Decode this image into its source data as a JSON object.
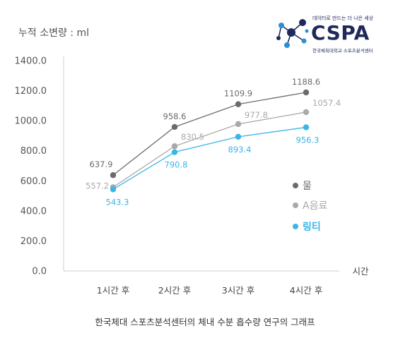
{
  "chart_data": {
    "type": "line",
    "ylabel": "누적 소변량 : ml",
    "xlabel": "시간",
    "categories": [
      "1시간 후",
      "2시간 후",
      "3시간 후",
      "4시간 후"
    ],
    "y_ticks": [
      "0.0",
      "200.0",
      "400.0",
      "600.0",
      "800.0",
      "1000.0",
      "1200.0",
      "1400.0"
    ],
    "ylim": [
      0,
      1400
    ],
    "grid": false,
    "legend_position": "right",
    "series": [
      {
        "name": "물",
        "color": "#6b6b6b",
        "values": [
          637.9,
          958.6,
          1109.9,
          1188.6
        ],
        "labels": [
          "637.9",
          "958.6",
          "1109.9",
          "1188.6"
        ]
      },
      {
        "name": "A음료",
        "color": "#a9a9a9",
        "values": [
          557.2,
          830.5,
          977.8,
          1057.4
        ],
        "labels": [
          "557.2",
          "830.5",
          "977.8",
          "1057.4"
        ]
      },
      {
        "name": "링티",
        "color": "#3bb5e6",
        "values": [
          543.3,
          790.8,
          893.4,
          956.3
        ],
        "labels": [
          "543.3",
          "790.8",
          "893.4",
          "956.3"
        ]
      }
    ],
    "caption": "한국체대 스포츠분석센터의 체내 수분 흡수량 연구의 그래프"
  },
  "logo": {
    "tagline": "데이터로 만드는 더 나은 세상",
    "brand": "CSPA",
    "subline": "한국체육대학교 스포츠분석센터",
    "color": "#1f2a5a",
    "accent": "#2a8fd6"
  }
}
